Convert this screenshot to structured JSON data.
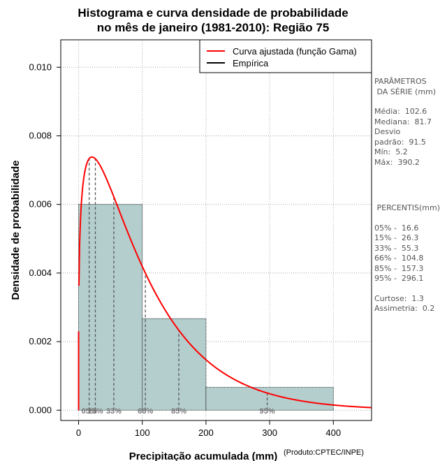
{
  "chart_data": {
    "type": "histogram",
    "title_line1": "Histograma e curva densidade de probabilidade",
    "title_line2": "no mês de janeiro (1981-2010): Região 75",
    "xlabel": "Precipitação acumulada (mm)",
    "ylabel": "Densidade de probabilidade",
    "credit": "(Produto:CPTEC/INPE)",
    "xlim": [
      -28,
      460
    ],
    "ylim": [
      -0.0003,
      0.0108
    ],
    "xticks": [
      0,
      100,
      200,
      300,
      400
    ],
    "yticks": [
      0.0,
      0.002,
      0.004,
      0.006,
      0.008,
      0.01
    ],
    "ytick_labels": [
      "0.000",
      "0.002",
      "0.004",
      "0.006",
      "0.008",
      "0.010"
    ],
    "grid": true,
    "bins": [
      {
        "x0": 0,
        "x1": 100,
        "density": 0.006
      },
      {
        "x0": 100,
        "x1": 200,
        "density": 0.00267
      },
      {
        "x0": 200,
        "x1": 400,
        "density": 0.00067
      }
    ],
    "gamma_curve": {
      "mean": 102.6,
      "sd": 91.5,
      "x_start": 0.5,
      "x_end": 460
    },
    "percentile_markers": [
      {
        "x": 16.6,
        "label": "05%"
      },
      {
        "x": 26.3,
        "label": "15%"
      },
      {
        "x": 55.3,
        "label": "33%"
      },
      {
        "x": 104.8,
        "label": "66%"
      },
      {
        "x": 157.3,
        "label": "85%"
      },
      {
        "x": 296.1,
        "label": "95%"
      }
    ],
    "legend": {
      "position": "top-right",
      "entries": [
        {
          "label": "Curva ajustada (função Gama)",
          "color": "#ff0000"
        },
        {
          "label": "Empírica",
          "color": "#000000"
        }
      ]
    },
    "colors": {
      "bar_fill": "#b4cece",
      "curve": "#ff0000",
      "grid": "#a9a9a9",
      "marker": "#555555"
    }
  },
  "side_panel": {
    "params_title_1": "PARÂMETROS",
    "params_title_2": " DA SÉRIE (mm)",
    "media": "Média:  102.6",
    "mediana": "Mediana:  81.7",
    "desvio_1": "Desvio",
    "desvio_2": "padrão:  91.5",
    "min": "Mín:  5.2",
    "max": "Máx:  390.2",
    "percentis_title": " PERCENTIS(mm)",
    "p05": "05% -  16.6",
    "p15": "15% -  26.3",
    "p33": "33% -  55.3",
    "p66": "66% -  104.8",
    "p85": "85% -  157.3",
    "p95": "95% -  296.1",
    "curtose": "Curtose:  1.3",
    "assimetria": "Assimetria:  0.2"
  }
}
